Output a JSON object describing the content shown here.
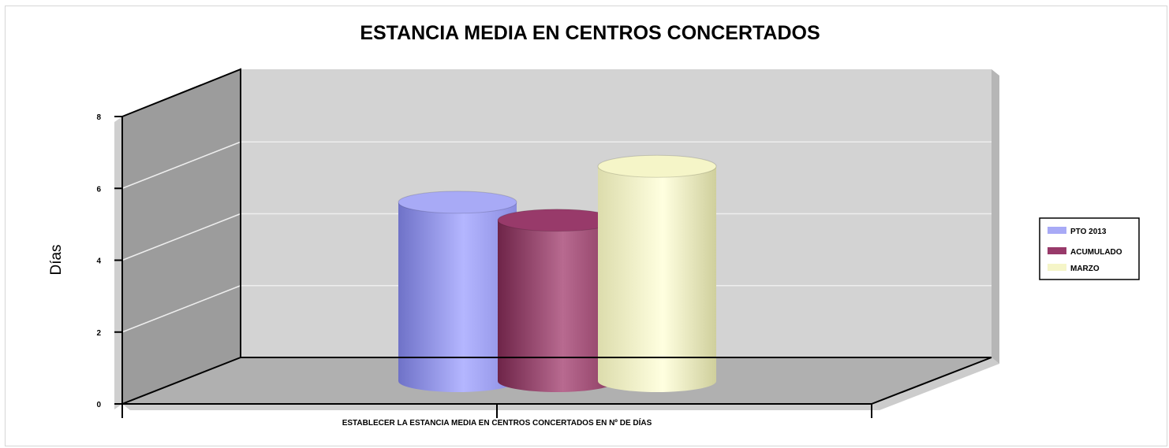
{
  "chart_data": {
    "type": "bar",
    "title": "ESTANCIA MEDIA EN CENTROS CONCERTADOS",
    "xlabel": "",
    "ylabel": "Días",
    "ylim": [
      0,
      8
    ],
    "yticks": [
      "0",
      "2",
      "4",
      "6",
      "8"
    ],
    "categories": [
      "ESTABLECER LA ESTANCIA MEDIA EN CENTROS CONCERTADOS EN Nº DE DÍAS"
    ],
    "series": [
      {
        "name": "PTO 2013",
        "values": [
          5.0
        ],
        "color": "#a8aaf6"
      },
      {
        "name": "ACUMULADO",
        "values": [
          4.5
        ],
        "color": "#983a6a"
      },
      {
        "name": "MARZO",
        "values": [
          6.0
        ],
        "color": "#f5f5c8"
      }
    ],
    "grid": true,
    "legend_position": "right"
  }
}
